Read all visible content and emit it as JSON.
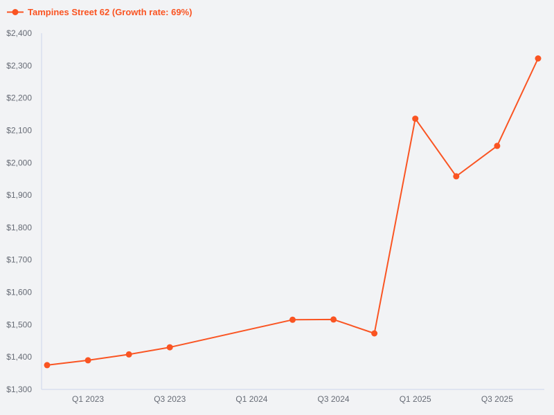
{
  "colors": {
    "accent": "#fa5422",
    "background": "#f2f3f5",
    "axis_line": "#ccd6eb",
    "axis_label": "#666b75"
  },
  "legend": {
    "label": "Tampines Street 62 (Growth rate: 69%)"
  },
  "chart_data": {
    "type": "line",
    "title": "Tampines Street 62 (Growth rate: 69%)",
    "legend_position": "top-left",
    "grid": false,
    "connect_nulls": true,
    "marker": "circle",
    "categories": [
      "Q4 2022",
      "Q1 2023",
      "Q2 2023",
      "Q3 2023",
      "Q4 2023",
      "Q1 2024",
      "Q2 2024",
      "Q3 2024",
      "Q4 2024",
      "Q1 2025",
      "Q2 2025",
      "Q3 2025",
      "Q4 2025"
    ],
    "series": [
      {
        "name": "Tampines Street 62",
        "growth_rate": "69%",
        "values": [
          1375,
          1390,
          1408,
          1430,
          null,
          null,
          1515,
          1516,
          1473,
          2136,
          1958,
          2052,
          2322
        ]
      }
    ],
    "ylim": [
      1300,
      2400
    ],
    "y_tick_step": 100,
    "y_tick_labels": [
      "$1,300",
      "$1,400",
      "$1,500",
      "$1,600",
      "$1,700",
      "$1,800",
      "$1,900",
      "$2,000",
      "$2,100",
      "$2,200",
      "$2,300",
      "$2,400"
    ],
    "x_tick_labels": [
      "Q1 2023",
      "Q3 2023",
      "Q1 2024",
      "Q3 2024",
      "Q1 2025",
      "Q3 2025"
    ],
    "xlabel": "",
    "ylabel": ""
  }
}
